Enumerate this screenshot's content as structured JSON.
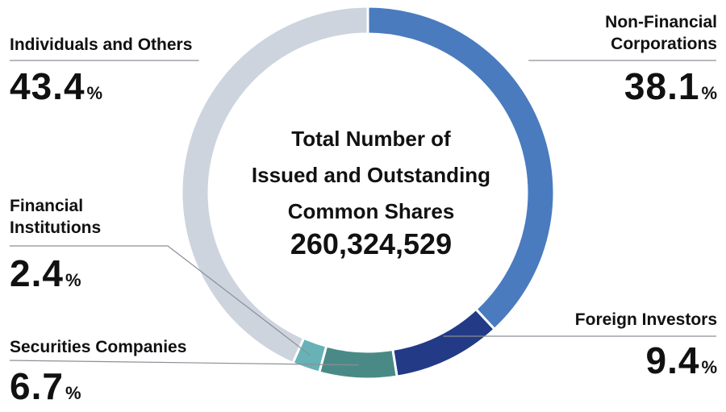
{
  "center": {
    "title": "Total Number of\nIssued and Outstanding\nCommon Shares",
    "total": "260,324,529"
  },
  "chart_data": {
    "type": "pie",
    "style": "donut",
    "slices": [
      {
        "label": "Non-Financial\nCorporations",
        "value": 38.1,
        "display": "38.1",
        "color": "#4a7bbf"
      },
      {
        "label": "Foreign Investors",
        "value": 9.4,
        "display": "9.4",
        "color": "#233a86"
      },
      {
        "label": "Securities Companies",
        "value": 6.7,
        "display": "6.7",
        "color": "#4a8a86"
      },
      {
        "label": "Financial\nInstitutions",
        "value": 2.4,
        "display": "2.4",
        "color": "#66b2b6"
      },
      {
        "label": "Individuals and Others",
        "value": 43.4,
        "display": "43.4",
        "color": "#cdd4de"
      }
    ],
    "unit": "%",
    "start_angle": "12 o'clock",
    "direction": "clockwise"
  }
}
